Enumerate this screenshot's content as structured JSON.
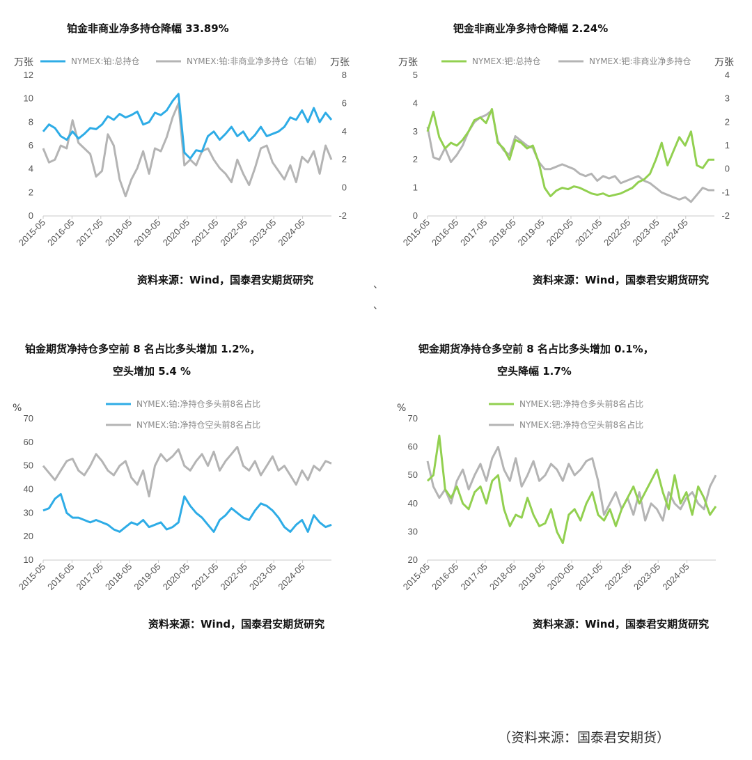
{
  "footer": "（资料来源：国泰君安期货）",
  "stray_marks": [
    "、",
    "、"
  ],
  "colors": {
    "blue": "#2EACE6",
    "green": "#92D050",
    "gray": "#B4B4B4"
  },
  "charts": [
    {
      "title_lines": [
        "铂金非商业净多持仓降幅 33.89%"
      ],
      "source": "资料来源：Wind，国泰君安期货研究",
      "chart_data": {
        "type": "line",
        "x_ticks": [
          "2015-05",
          "2016-05",
          "2017-05",
          "2018-05",
          "2019-05",
          "2020-05",
          "2021-05",
          "2022-05",
          "2023-05",
          "2024-05"
        ],
        "y_left": {
          "unit": "万张",
          "min": 0,
          "max": 12,
          "ticks": [
            0,
            2,
            4,
            6,
            8,
            10,
            12
          ]
        },
        "y_right": {
          "unit": "万张",
          "min": -2,
          "max": 8,
          "ticks": [
            -2,
            0,
            2,
            4,
            6,
            8
          ]
        },
        "legend_layout": "inline",
        "series": [
          {
            "name": "NYMEX:铂:总持仓",
            "axis": "left",
            "color": "#2EACE6",
            "values": [
              7.2,
              7.8,
              7.5,
              6.8,
              6.5,
              7.2,
              6.6,
              7.0,
              7.5,
              7.4,
              7.8,
              8.5,
              8.2,
              8.7,
              8.4,
              8.6,
              8.9,
              7.8,
              8.0,
              8.8,
              8.6,
              9.0,
              9.8,
              10.4,
              5.4,
              4.9,
              5.6,
              5.5,
              6.8,
              7.2,
              6.5,
              7.0,
              7.6,
              6.8,
              7.2,
              6.4,
              6.9,
              7.6,
              6.8,
              7.0,
              7.2,
              7.6,
              8.4,
              8.2,
              9.0,
              8.0,
              9.2,
              8.0,
              8.8,
              8.2
            ]
          },
          {
            "name": "NYMEX:铂:非商业净多持仓（右轴）",
            "axis": "right",
            "color": "#B4B4B4",
            "values": [
              2.8,
              1.8,
              2.0,
              3.0,
              2.8,
              4.8,
              3.2,
              2.8,
              2.4,
              0.8,
              1.2,
              3.8,
              3.0,
              0.6,
              -0.6,
              0.6,
              1.4,
              2.6,
              1.0,
              2.8,
              2.6,
              3.6,
              5.0,
              6.0,
              1.6,
              2.0,
              1.6,
              2.6,
              2.8,
              2.0,
              1.4,
              1.0,
              0.4,
              2.0,
              1.0,
              0.2,
              1.4,
              2.8,
              3.0,
              1.8,
              1.2,
              0.6,
              1.6,
              0.4,
              2.2,
              1.8,
              2.6,
              1.0,
              3.0,
              2.0
            ]
          }
        ]
      }
    },
    {
      "title_lines": [
        "钯金非商业净多持仓降幅 2.24%"
      ],
      "source": "资料来源：Wind，国泰君安期货研究",
      "chart_data": {
        "type": "line",
        "x_ticks": [
          "2015-05",
          "2016-05",
          "2017-05",
          "2018-05",
          "2019-05",
          "2020-05",
          "2021-05",
          "2022-05",
          "2023-05",
          "2024-05"
        ],
        "y_left": {
          "unit": "万张",
          "min": 0,
          "max": 5,
          "ticks": [
            0,
            1,
            2,
            3,
            4,
            5
          ]
        },
        "y_right": {
          "unit": "万张",
          "min": -2,
          "max": 4,
          "ticks": [
            -2,
            -1,
            0,
            1,
            2,
            3,
            4
          ]
        },
        "legend_layout": "inline",
        "series": [
          {
            "name": "NYMEX:钯:总持仓",
            "axis": "left",
            "color": "#92D050",
            "values": [
              3.0,
              3.7,
              2.8,
              2.4,
              2.6,
              2.5,
              2.7,
              3.0,
              3.4,
              3.5,
              3.3,
              3.8,
              2.6,
              2.4,
              2.0,
              2.7,
              2.6,
              2.4,
              2.5,
              1.9,
              1.0,
              0.7,
              0.9,
              1.0,
              0.95,
              1.05,
              1.0,
              0.9,
              0.8,
              0.75,
              0.8,
              0.7,
              0.75,
              0.8,
              0.9,
              1.0,
              1.2,
              1.3,
              1.5,
              2.0,
              2.6,
              1.8,
              2.3,
              2.8,
              2.5,
              3.0,
              1.8,
              1.7,
              2.0,
              2.0
            ]
          },
          {
            "name": "NYMEX:钯:非商业净多持仓",
            "axis": "right",
            "color": "#B4B4B4",
            "values": [
              1.8,
              0.5,
              0.4,
              0.9,
              0.3,
              0.6,
              1.0,
              1.6,
              2.0,
              2.2,
              2.3,
              2.5,
              1.2,
              0.8,
              0.6,
              1.4,
              1.2,
              1.0,
              0.9,
              0.3,
              0.0,
              0.0,
              0.1,
              0.2,
              0.1,
              0.0,
              -0.2,
              -0.3,
              -0.2,
              -0.5,
              -0.3,
              -0.4,
              -0.3,
              -0.6,
              -0.5,
              -0.4,
              -0.3,
              -0.5,
              -0.6,
              -0.8,
              -1.0,
              -1.1,
              -1.2,
              -1.3,
              -1.2,
              -1.4,
              -1.1,
              -0.8,
              -0.9,
              -0.9
            ]
          }
        ]
      }
    },
    {
      "title_lines": [
        "铂金期货净持仓多空前 8 名占比多头增加 1.2%，",
        "空头增加 5.4 %"
      ],
      "source": "资料来源：Wind，国泰君安期货研究",
      "chart_data": {
        "type": "line",
        "x_ticks": [
          "2015-05",
          "2016-05",
          "2017-05",
          "2018-05",
          "2019-05",
          "2020-05",
          "2021-05",
          "2022-05",
          "2023-05",
          "2024-05"
        ],
        "y_left": {
          "unit": "%",
          "min": 10,
          "max": 70,
          "ticks": [
            10,
            20,
            30,
            40,
            50,
            60,
            70
          ]
        },
        "legend_layout": "stacked",
        "series": [
          {
            "name": "NYMEX:铂:净持仓多头前8名占比",
            "axis": "left",
            "color": "#2EACE6",
            "values": [
              31,
              32,
              36,
              38,
              30,
              28,
              28,
              27,
              26,
              27,
              26,
              25,
              23,
              22,
              24,
              26,
              25,
              27,
              24,
              25,
              26,
              23,
              24,
              26,
              37,
              33,
              30,
              28,
              25,
              22,
              27,
              29,
              32,
              30,
              28,
              27,
              31,
              34,
              33,
              31,
              28,
              24,
              22,
              25,
              27,
              22,
              29,
              26,
              24,
              25
            ]
          },
          {
            "name": "NYMEX:铂:净持仓空头前8名占比",
            "axis": "left",
            "color": "#B4B4B4",
            "values": [
              50,
              47,
              44,
              48,
              52,
              53,
              48,
              46,
              50,
              55,
              52,
              48,
              46,
              50,
              52,
              45,
              42,
              48,
              37,
              50,
              55,
              52,
              54,
              57,
              50,
              48,
              52,
              55,
              50,
              56,
              48,
              52,
              55,
              58,
              50,
              48,
              52,
              46,
              50,
              54,
              48,
              50,
              46,
              42,
              48,
              44,
              50,
              48,
              52,
              51
            ]
          }
        ]
      }
    },
    {
      "title_lines": [
        "钯金期货净持仓多空前 8 名占比多头增加 0.1%，",
        "空头降幅 1.7%"
      ],
      "source": "资料来源：Wind，国泰君安期货研究",
      "chart_data": {
        "type": "line",
        "x_ticks": [
          "2015-05",
          "2016-05",
          "2017-05",
          "2018-05",
          "2019-05",
          "2020-05",
          "2021-05",
          "2022-05",
          "2023-05",
          "2024-05"
        ],
        "y_left": {
          "unit": "%",
          "min": 20,
          "max": 70,
          "ticks": [
            20,
            30,
            40,
            50,
            60,
            70
          ]
        },
        "legend_layout": "stacked",
        "series": [
          {
            "name": "NYMEX:钯:净持仓多头前8名占比",
            "axis": "left",
            "color": "#92D050",
            "values": [
              48,
              50,
              64,
              45,
              42,
              46,
              40,
              38,
              44,
              46,
              40,
              48,
              50,
              38,
              32,
              36,
              35,
              42,
              36,
              32,
              33,
              38,
              30,
              26,
              36,
              38,
              34,
              40,
              44,
              36,
              34,
              38,
              32,
              38,
              42,
              46,
              40,
              44,
              48,
              52,
              44,
              38,
              50,
              40,
              44,
              36,
              46,
              42,
              36,
              39
            ]
          },
          {
            "name": "NYMEX:钯:净持仓空头前8名占比",
            "axis": "left",
            "color": "#B4B4B4",
            "values": [
              55,
              46,
              42,
              45,
              40,
              48,
              52,
              45,
              50,
              54,
              48,
              56,
              60,
              52,
              48,
              56,
              46,
              50,
              55,
              48,
              50,
              54,
              52,
              48,
              54,
              50,
              52,
              55,
              56,
              48,
              36,
              40,
              44,
              38,
              42,
              36,
              44,
              34,
              40,
              38,
              34,
              44,
              40,
              38,
              42,
              44,
              40,
              38,
              46,
              50
            ]
          }
        ]
      }
    }
  ]
}
